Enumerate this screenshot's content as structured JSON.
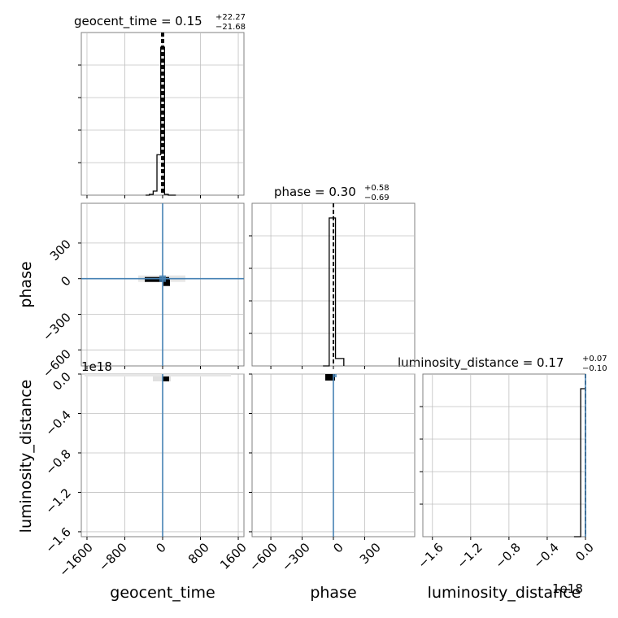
{
  "chart_data": {
    "type": "corner",
    "parameters": [
      "geocent_time",
      "phase",
      "luminosity_distance"
    ],
    "titles": [
      {
        "param": "geocent_time",
        "text": "geocent_time = 0.15",
        "upper": "+22.27",
        "lower": "−21.68",
        "median": 0.15,
        "plus": 22.27,
        "minus": 21.68
      },
      {
        "param": "phase",
        "text": "phase = 0.30",
        "upper": "+0.58",
        "lower": "−0.69",
        "median": 0.3,
        "plus": 0.58,
        "minus": 0.69
      },
      {
        "param": "luminosity_distance",
        "text": "luminosity_distance = 0.17",
        "upper": "+0.07",
        "lower": "−0.10",
        "median": 0.17,
        "plus": 0.07,
        "minus": 0.1
      }
    ],
    "axis_labels": {
      "x": [
        "geocent_time",
        "phase",
        "luminosity_distance"
      ],
      "y": [
        "phase",
        "luminosity_distance"
      ]
    },
    "x_ranges": {
      "geocent_time": [
        -1720,
        1720
      ],
      "phase": [
        -780,
        780
      ],
      "luminosity_distance": [
        -1.7,
        0.0
      ]
    },
    "y_ranges": {
      "phase": [
        -735,
        635
      ],
      "luminosity_distance": [
        -1.65,
        0.0
      ]
    },
    "ticks": {
      "geocent_time": [
        "−1600",
        "−800",
        "0",
        "800",
        "1600"
      ],
      "phase_x": [
        "−600",
        "−300",
        "0",
        "300"
      ],
      "luminosity_distance_x": [
        "−1.6",
        "−1.2",
        "−0.8",
        "−0.4",
        "0.0"
      ],
      "phase_y": [
        "300",
        "0",
        "−300",
        "−600"
      ],
      "luminosity_distance_y": [
        "0.0",
        "−0.4",
        "−0.8",
        "−1.2",
        "−1.6"
      ]
    },
    "tick_values": {
      "geocent_time": [
        -1600,
        -800,
        0,
        800,
        1600
      ],
      "phase_x": [
        -600,
        -300,
        0,
        300
      ],
      "luminosity_distance_x": [
        -1.6,
        -1.2,
        -0.8,
        -0.4,
        0.0
      ],
      "phase_y": [
        300,
        0,
        -300,
        -600
      ],
      "luminosity_distance_y": [
        0.0,
        -0.4,
        -0.8,
        -1.2,
        -1.6
      ]
    },
    "offset_text": "1e18",
    "histograms": {
      "geocent_time": {
        "bin_edges": [
          -360,
          -280,
          -200,
          -120,
          -40,
          40,
          120,
          200,
          280
        ],
        "counts": [
          0,
          1,
          5,
          50,
          183,
          1,
          0,
          0
        ]
      },
      "phase": {
        "bin_edges": [
          -100,
          -40,
          20,
          100
        ],
        "counts": [
          0,
          1,
          0.05
        ]
      },
      "luminosity_distance": {
        "bin_edges": [
          -0.12,
          -0.05,
          0.0
        ],
        "counts": [
          0,
          1
        ]
      }
    },
    "truth_color": "#4682b4",
    "hist_color": "#000000",
    "grid": true
  }
}
